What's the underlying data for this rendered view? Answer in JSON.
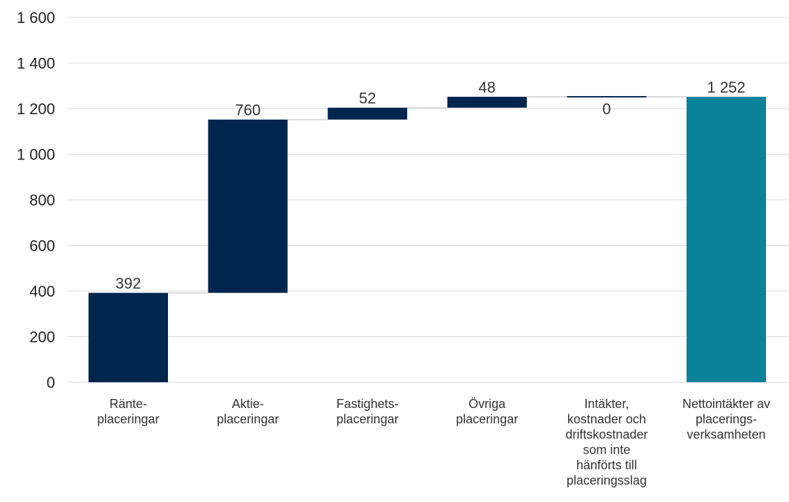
{
  "chart_data": {
    "type": "bar",
    "subtype": "waterfall",
    "categories": [
      [
        "Ränte-",
        "placeringar"
      ],
      [
        "Aktie-",
        "placeringar"
      ],
      [
        "Fastighets-",
        "placeringar"
      ],
      [
        "Övriga",
        "placeringar"
      ],
      [
        "Intäkter,",
        "kostnader och",
        "driftskostnader",
        "som inte",
        "hänförts till",
        "placeringsslag"
      ],
      [
        "Nettointäkter av",
        "placerings-",
        "verksamheten"
      ]
    ],
    "values": [
      392,
      760,
      52,
      48,
      0,
      1252
    ],
    "data_labels": [
      "392",
      "760",
      "52",
      "48",
      "0",
      "1 252"
    ],
    "bar_kind": [
      "delta",
      "delta",
      "delta",
      "delta",
      "delta",
      "total"
    ],
    "ylim": [
      0,
      1600
    ],
    "yticks": [
      0,
      200,
      400,
      600,
      800,
      1000,
      1200,
      1400,
      1600
    ],
    "ytick_labels": [
      "0",
      "200",
      "400",
      "600",
      "800",
      "1 000",
      "1 200",
      "1 400",
      "1 600"
    ],
    "grid": true,
    "legend": "none",
    "colors": {
      "delta": "#00264d",
      "total": "#0a829a",
      "grid": "#d9d9d9",
      "connector": "#d9d9d9"
    }
  }
}
